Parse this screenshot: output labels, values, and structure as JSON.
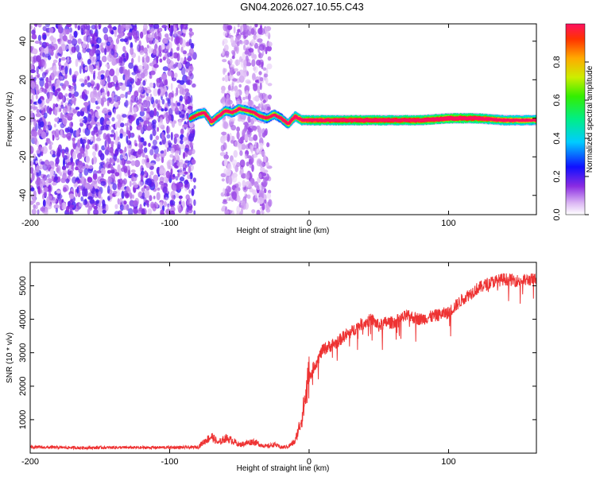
{
  "title": "GN04.2026.027.10.55.C43",
  "chart_data": [
    {
      "type": "heatmap",
      "name": "spectrogram",
      "xlabel": "Height of straight line (km)",
      "ylabel": "Frequency (Hz)",
      "xlim": [
        -200,
        163
      ],
      "ylim": [
        -50,
        49
      ],
      "xticks": [
        -200,
        -100,
        0,
        100
      ],
      "yticks": [
        -40,
        -20,
        0,
        20,
        40
      ],
      "colorbar": {
        "label": "Normalized spectral amplitude",
        "range": [
          0,
          1
        ],
        "ticks": [
          0.0,
          0.2,
          0.4,
          0.6,
          0.8
        ]
      },
      "regions": [
        {
          "desc": "noise",
          "x_range": [
            -200,
            -82
          ],
          "freq_range": [
            -50,
            49
          ],
          "amplitude": 0.12
        },
        {
          "desc": "noise",
          "x_range": [
            -62,
            -28
          ],
          "freq_range": [
            -50,
            49
          ],
          "amplitude": 0.08
        }
      ],
      "signal_trace": {
        "x": [
          -85,
          -80,
          -75,
          -70,
          -65,
          -60,
          -55,
          -50,
          -45,
          -40,
          -35,
          -30,
          -25,
          -20,
          -15,
          -10,
          -5,
          0,
          20,
          40,
          60,
          80,
          100,
          120,
          140,
          163
        ],
        "freq": [
          0,
          2,
          3,
          -2,
          1,
          4,
          3,
          5,
          4,
          3,
          1,
          0,
          2,
          0,
          -3,
          1,
          -1,
          -1,
          -1,
          -1,
          -1,
          -1,
          0,
          0,
          -1,
          -1
        ],
        "amplitude": [
          0.3,
          0.35,
          0.4,
          0.4,
          0.45,
          0.45,
          0.4,
          0.45,
          0.4,
          0.35,
          0.45,
          0.3,
          0.4,
          0.35,
          0.45,
          0.6,
          0.6,
          0.7,
          0.75,
          0.8,
          0.75,
          0.8,
          0.9,
          0.8,
          0.6,
          0.55
        ]
      }
    },
    {
      "type": "line",
      "name": "snr",
      "xlabel": "Height of straight line (km)",
      "ylabel": "SNR (10 * v/v)",
      "xlim": [
        -200,
        163
      ],
      "ylim": [
        0,
        5700
      ],
      "xticks": [
        -200,
        -100,
        0,
        100
      ],
      "yticks": [
        1000,
        2000,
        3000,
        4000,
        5000
      ],
      "color": "#ee3333",
      "series": [
        {
          "name": "SNR",
          "x": [
            -200,
            -180,
            -160,
            -140,
            -120,
            -100,
            -90,
            -80,
            -75,
            -70,
            -65,
            -60,
            -55,
            -50,
            -45,
            -40,
            -35,
            -30,
            -25,
            -20,
            -15,
            -10,
            -5,
            0,
            5,
            10,
            15,
            20,
            25,
            30,
            35,
            40,
            45,
            50,
            55,
            60,
            70,
            80,
            90,
            100,
            110,
            120,
            130,
            140,
            150,
            163
          ],
          "y": [
            180,
            170,
            160,
            170,
            165,
            170,
            170,
            180,
            350,
            500,
            300,
            450,
            380,
            250,
            300,
            350,
            250,
            200,
            260,
            170,
            200,
            350,
            1100,
            2300,
            2700,
            3100,
            3200,
            3300,
            3500,
            3600,
            3800,
            3900,
            4000,
            3800,
            3900,
            3900,
            4100,
            4000,
            4100,
            4200,
            4600,
            4900,
            5100,
            5200,
            5150,
            5200
          ]
        }
      ]
    }
  ]
}
